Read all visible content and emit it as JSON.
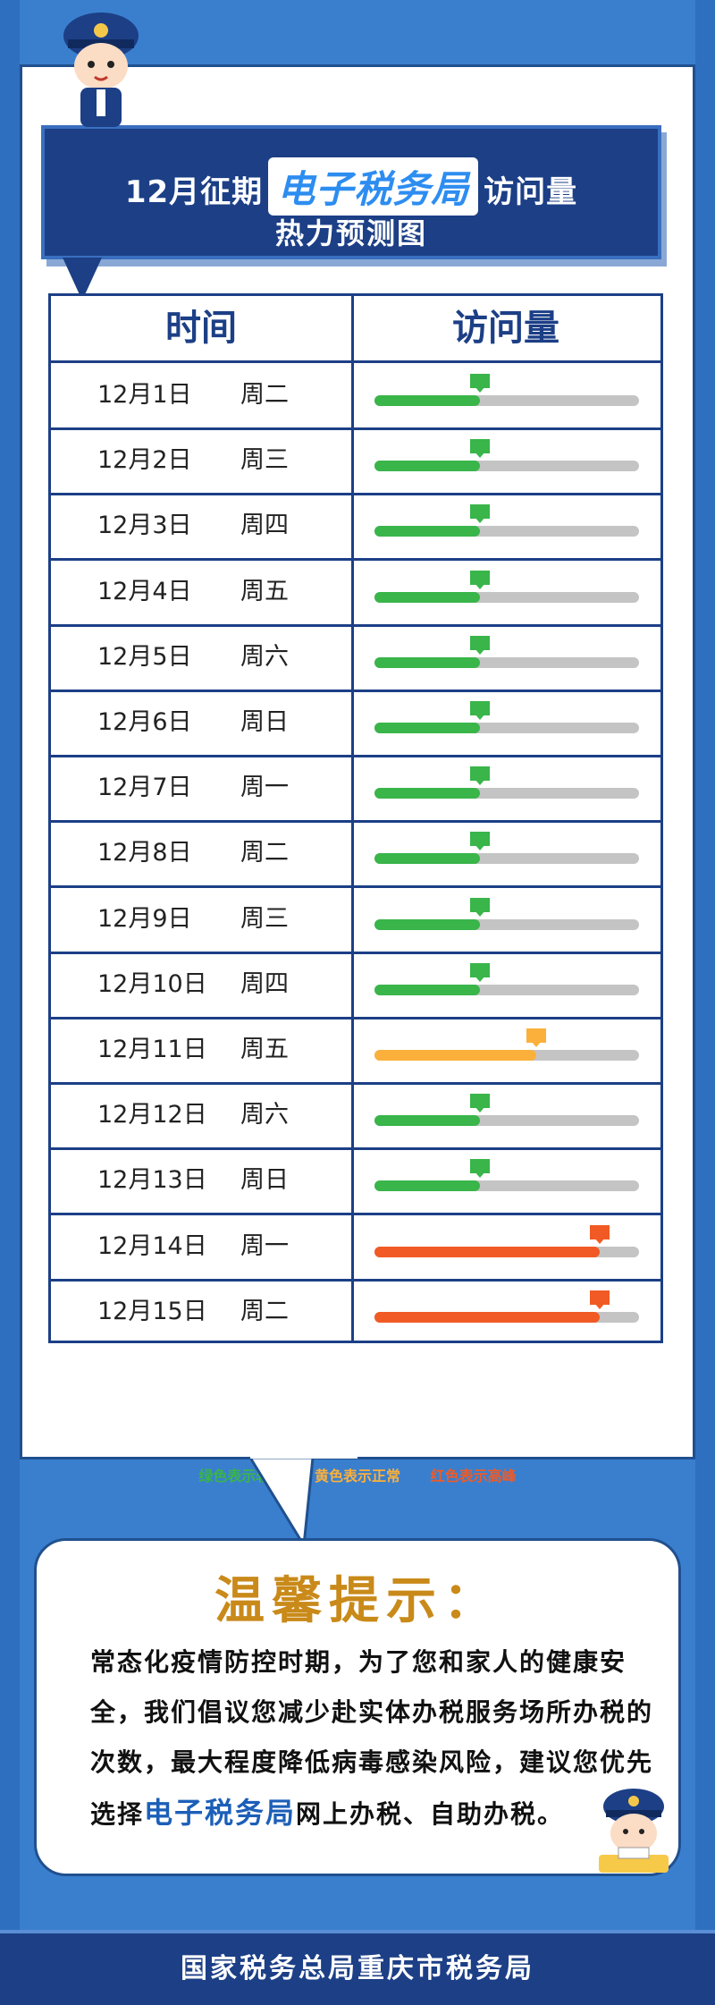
{
  "banner": {
    "line1_pre": "12月征期",
    "line1_highlight": "电子税务局",
    "line1_post": "访问量",
    "line2": "热力预测图"
  },
  "table": {
    "headers": [
      "时间",
      "访问量"
    ],
    "colors": {
      "low": "#39b54a",
      "normal": "#fbb03b",
      "high": "#f15a24",
      "track": "#c4c4c4"
    },
    "rows": [
      {
        "date": "12月1日",
        "weekday": "周二",
        "level": "low",
        "fill": 0.4
      },
      {
        "date": "12月2日",
        "weekday": "周三",
        "level": "low",
        "fill": 0.4
      },
      {
        "date": "12月3日",
        "weekday": "周四",
        "level": "low",
        "fill": 0.4
      },
      {
        "date": "12月4日",
        "weekday": "周五",
        "level": "low",
        "fill": 0.4
      },
      {
        "date": "12月5日",
        "weekday": "周六",
        "level": "low",
        "fill": 0.4
      },
      {
        "date": "12月6日",
        "weekday": "周日",
        "level": "low",
        "fill": 0.4
      },
      {
        "date": "12月7日",
        "weekday": "周一",
        "level": "low",
        "fill": 0.4
      },
      {
        "date": "12月8日",
        "weekday": "周二",
        "level": "low",
        "fill": 0.4
      },
      {
        "date": "12月9日",
        "weekday": "周三",
        "level": "low",
        "fill": 0.4
      },
      {
        "date": "12月10日",
        "weekday": "周四",
        "level": "low",
        "fill": 0.4
      },
      {
        "date": "12月11日",
        "weekday": "周五",
        "level": "normal",
        "fill": 0.61
      },
      {
        "date": "12月12日",
        "weekday": "周六",
        "level": "low",
        "fill": 0.4
      },
      {
        "date": "12月13日",
        "weekday": "周日",
        "level": "low",
        "fill": 0.4
      },
      {
        "date": "12月14日",
        "weekday": "周一",
        "level": "high",
        "fill": 0.85
      },
      {
        "date": "12月15日",
        "weekday": "周二",
        "level": "high",
        "fill": 0.85
      }
    ]
  },
  "legend": {
    "low": "绿色表示较少",
    "normal": "黄色表示正常",
    "high": "红色表示高峰"
  },
  "tip": {
    "title": "温馨提示：",
    "body_pre": "常态化疫情防控时期，为了您和家人的健康安全，我们倡议您减少赴实体办税服务场所办税的次数，最大程度降低病毒感染风险，建议您优先选择",
    "body_highlight": "电子税务局",
    "body_post": "网上办税、自助办税。"
  },
  "footer": "国家税务总局重庆市税务局",
  "icons": {
    "mascot_top": "tax-officer-mascot-icon",
    "mascot_bottom": "tax-officer-desk-mascot-icon"
  }
}
